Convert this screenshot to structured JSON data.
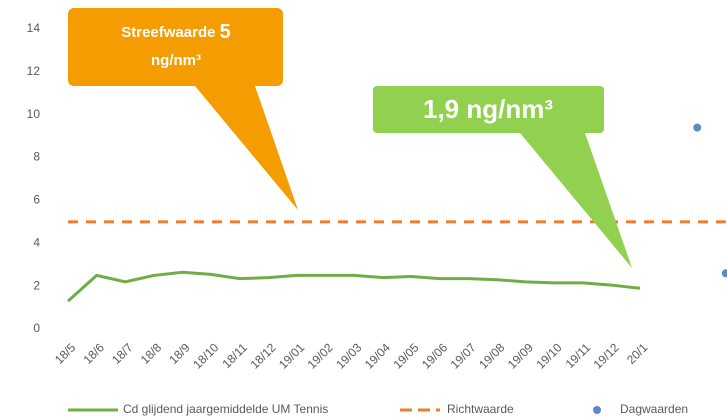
{
  "chart_data": {
    "type": "line",
    "categories": [
      "18/5",
      "18/6",
      "18/7",
      "18/8",
      "18/9",
      "18/10",
      "18/11",
      "18/12",
      "19/01",
      "19/02",
      "19/03",
      "19/04",
      "19/05",
      "19/06",
      "19/07",
      "19/08",
      "19/09",
      "19/10",
      "19/11",
      "19/12",
      "20/1",
      null,
      null,
      null
    ],
    "series": [
      {
        "name": "Cd glijdend jaargemiddelde UM  Tennis",
        "color": "#70ad47",
        "style": "line",
        "values": [
          1.3,
          2.5,
          2.2,
          2.5,
          2.65,
          2.55,
          2.35,
          2.4,
          2.5,
          2.5,
          2.5,
          2.4,
          2.45,
          2.35,
          2.35,
          2.3,
          2.2,
          2.15,
          2.15,
          2.05,
          1.9,
          null,
          null,
          null
        ]
      },
      {
        "name": "Richtwaarde",
        "color": "#ed7d31",
        "style": "dashed",
        "values": [
          5,
          5,
          5,
          5,
          5,
          5,
          5,
          5,
          5,
          5,
          5,
          5,
          5,
          5,
          5,
          5,
          5,
          5,
          5,
          5,
          5,
          5,
          5,
          5
        ]
      },
      {
        "name": "Dagwaarden",
        "color": "#5b8ac6",
        "style": "points",
        "values": [
          null,
          null,
          null,
          null,
          null,
          null,
          null,
          null,
          null,
          null,
          null,
          null,
          null,
          null,
          null,
          null,
          null,
          null,
          null,
          null,
          null,
          null,
          9.4,
          2.6
        ]
      }
    ],
    "annotations": [
      "Streefwaarde",
      "5",
      "ng/nm³",
      "1,9 ng/nm³"
    ],
    "ylim": [
      0,
      14
    ],
    "yticks": [
      0,
      2,
      4,
      6,
      8,
      10,
      12,
      14
    ],
    "grid": false,
    "legend": "bottom"
  }
}
